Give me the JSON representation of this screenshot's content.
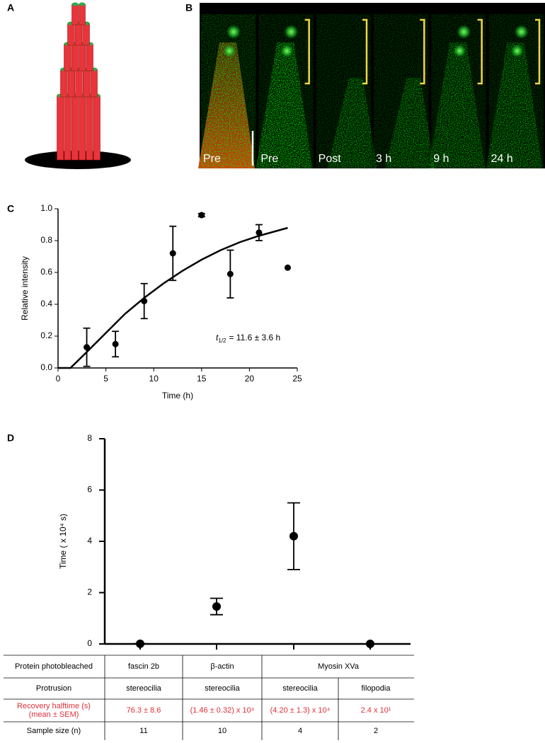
{
  "panels": {
    "a": "A",
    "b": "B",
    "b_frames": [
      "Pre",
      "Pre",
      "Post",
      "3 h",
      "9 h",
      "24 h"
    ]
  },
  "chart_data": [
    {
      "type": "scatter",
      "label": "C",
      "x_label": "Time (h)",
      "y_label": "Relative intensity",
      "xlim": [
        0,
        25
      ],
      "xticks": [
        0,
        5,
        10,
        15,
        20,
        25
      ],
      "ylim": [
        0,
        1
      ],
      "yticks": [
        {
          "value": 0,
          "label": "0.0"
        },
        {
          "value": 0.2,
          "label": "0.2"
        },
        {
          "value": 0.4,
          "label": "0.4"
        },
        {
          "value": 0.6,
          "label": "0.6"
        },
        {
          "value": 0.8,
          "label": "0.8"
        },
        {
          "value": 1,
          "label": "1.0"
        }
      ],
      "annotation": [
        "t",
        "1/2",
        "= 11.6 ± 3.6 h"
      ],
      "series": [
        {
          "type": "scatter",
          "color": "#000000",
          "x": [
            3,
            6,
            9,
            12,
            15,
            18,
            21,
            24
          ],
          "values": [
            0.13,
            0.15,
            0.42,
            0.72,
            0.96,
            0.59,
            0.85,
            0.63
          ],
          "errors": [
            0.12,
            0.08,
            0.11,
            0.17,
            0.01,
            0.15,
            0.05,
            null
          ]
        },
        {
          "type": "line",
          "color": "#000000",
          "x": [
            0,
            1.3,
            3,
            5,
            7,
            9,
            11,
            13,
            15,
            17,
            19,
            21,
            24
          ],
          "values": [
            0,
            0,
            0.1,
            0.22,
            0.34,
            0.44,
            0.53,
            0.61,
            0.68,
            0.74,
            0.79,
            0.83,
            0.88
          ]
        }
      ]
    },
    {
      "type": "scatter",
      "label": "D",
      "y_label": "Time ( x 10⁴ s)",
      "categories": [
        null,
        null,
        null,
        null
      ],
      "ylim": [
        0,
        8
      ],
      "yticks": [
        0,
        2,
        4,
        6,
        8
      ],
      "color": "#000000",
      "values": [
        0.00763,
        1.46,
        4.2,
        0.0024
      ],
      "errors": [
        0.00086,
        0.32,
        1.3,
        null
      ]
    }
  ],
  "table": {
    "rows": [
      [
        "Protein photobleached",
        "fascin 2b",
        "β-actin",
        "Myosin  XVa"
      ],
      [
        "Protrusion",
        "stereocilia",
        "stereocilia",
        "stereocilia",
        "filopodia"
      ],
      [
        [
          "Recovery halftime (s)",
          "(mean ± SEM)"
        ],
        "76.3 ± 8.6",
        "(1.46 ± 0.32) x 10⁴",
        "(4.20 ± 1.3) x 10⁴",
        "2.4 x 10¹"
      ],
      [
        "Sample size (n)",
        "11",
        "10",
        "4",
        "2"
      ]
    ]
  }
}
